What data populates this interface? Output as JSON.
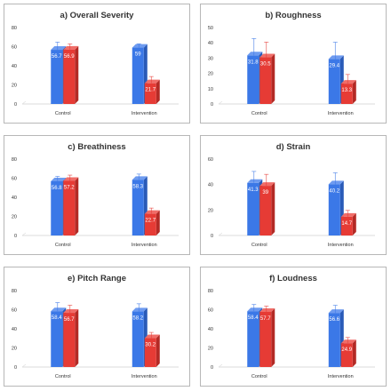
{
  "chart_data": [
    {
      "type": "bar",
      "title": "a) Overall Severity",
      "categories": [
        "Control",
        "Intervention"
      ],
      "series": [
        {
          "color": "#3b78e7",
          "values": [
            56.7,
            59
          ],
          "labels": [
            "56.7",
            "59"
          ],
          "error": [
            8,
            4
          ]
        },
        {
          "color": "#e63b35",
          "values": [
            56.9,
            21.7
          ],
          "labels": [
            "56.9",
            "21.7"
          ],
          "error": [
            6,
            7
          ]
        }
      ],
      "ylim": [
        0,
        60
      ],
      "yticks": [
        0,
        20,
        40,
        60,
        80
      ],
      "grid": false
    },
    {
      "type": "bar",
      "title": "b) Roughness",
      "categories": [
        "Control",
        "Intervention"
      ],
      "series": [
        {
          "color": "#3b78e7",
          "values": [
            31.8,
            29.4
          ],
          "labels": [
            "31.8",
            "29.4"
          ],
          "error": [
            11,
            11
          ]
        },
        {
          "color": "#e63b35",
          "values": [
            30.5,
            13.3
          ],
          "labels": [
            "30.5",
            "13.3"
          ],
          "error": [
            10,
            6
          ]
        }
      ],
      "ylim": [
        0,
        40
      ],
      "yticks": [
        0,
        10,
        20,
        30,
        40,
        50
      ],
      "grid": false
    },
    {
      "type": "bar",
      "title": "c) Breathiness",
      "categories": [
        "Control",
        "Intervention"
      ],
      "series": [
        {
          "color": "#3b78e7",
          "values": [
            56.8,
            58.3
          ],
          "labels": [
            "56.8",
            "58.3"
          ],
          "error": [
            5,
            6
          ]
        },
        {
          "color": "#e63b35",
          "values": [
            57.2,
            22.7
          ],
          "labels": [
            "57.2",
            "22.7"
          ],
          "error": [
            6,
            6
          ]
        }
      ],
      "ylim": [
        0,
        60
      ],
      "yticks": [
        0,
        20,
        40,
        60,
        80
      ],
      "grid": false
    },
    {
      "type": "bar",
      "title": "d) Strain",
      "categories": [
        "Control",
        "Intervention"
      ],
      "series": [
        {
          "color": "#3b78e7",
          "values": [
            41.3,
            40.2
          ],
          "labels": [
            "41.3",
            "40.2"
          ],
          "error": [
            9,
            9
          ]
        },
        {
          "color": "#e63b35",
          "values": [
            39,
            14.7
          ],
          "labels": [
            "39",
            "14.7"
          ],
          "error": [
            9,
            5
          ]
        }
      ],
      "ylim": [
        0,
        60
      ],
      "yticks": [
        0,
        20,
        40,
        60
      ],
      "grid": false
    },
    {
      "type": "bar",
      "title": "e) Pitch Range",
      "categories": [
        "Control",
        "Intervention"
      ],
      "series": [
        {
          "color": "#3b78e7",
          "values": [
            58.4,
            58.2
          ],
          "labels": [
            "58.4",
            "58.2"
          ],
          "error": [
            9,
            8
          ]
        },
        {
          "color": "#e63b35",
          "values": [
            56.7,
            30.2
          ],
          "labels": [
            "56.7",
            "30.2"
          ],
          "error": [
            8,
            6
          ]
        }
      ],
      "ylim": [
        0,
        60
      ],
      "yticks": [
        0,
        20,
        40,
        60,
        80
      ],
      "grid": false
    },
    {
      "type": "bar",
      "title": "f) Loudness",
      "categories": [
        "Control",
        "Intervention"
      ],
      "series": [
        {
          "color": "#3b78e7",
          "values": [
            58.4,
            56.6
          ],
          "labels": [
            "58.4",
            "56.6"
          ],
          "error": [
            7,
            8
          ]
        },
        {
          "color": "#e63b35",
          "values": [
            57.7,
            24.9
          ],
          "labels": [
            "57.7",
            "24.9"
          ],
          "error": [
            6,
            6
          ]
        }
      ],
      "ylim": [
        0,
        60
      ],
      "yticks": [
        0,
        20,
        40,
        60,
        80
      ],
      "grid": false
    }
  ]
}
